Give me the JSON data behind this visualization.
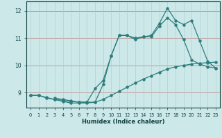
{
  "xlabel": "Humidex (Indice chaleur)",
  "bg_color": "#cce8e8",
  "line_color": "#2d7d7d",
  "xlim": [
    -0.5,
    23.5
  ],
  "ylim": [
    8.45,
    12.35
  ],
  "yticks": [
    9,
    10,
    11,
    12
  ],
  "xticks": [
    0,
    1,
    2,
    3,
    4,
    5,
    6,
    7,
    8,
    9,
    10,
    11,
    12,
    13,
    14,
    15,
    16,
    17,
    18,
    19,
    20,
    21,
    22,
    23
  ],
  "line1_x": [
    0,
    1,
    2,
    3,
    4,
    5,
    6,
    7,
    8,
    9,
    10,
    11,
    12,
    13,
    14,
    15,
    16,
    17,
    18,
    19,
    20,
    21,
    22,
    23
  ],
  "line1_y": [
    8.9,
    8.9,
    8.8,
    8.75,
    8.68,
    8.62,
    8.62,
    8.62,
    8.65,
    8.75,
    8.9,
    9.05,
    9.2,
    9.35,
    9.5,
    9.62,
    9.75,
    9.87,
    9.95,
    10.0,
    10.05,
    10.08,
    10.1,
    10.12
  ],
  "line2_x": [
    0,
    1,
    2,
    3,
    4,
    5,
    6,
    7,
    8,
    9,
    10,
    11,
    12,
    13,
    14,
    15,
    16,
    17,
    18,
    19,
    20,
    21,
    22,
    23
  ],
  "line2_y": [
    8.9,
    8.9,
    8.82,
    8.75,
    8.72,
    8.68,
    8.65,
    8.65,
    9.15,
    9.45,
    10.35,
    11.1,
    11.1,
    10.95,
    11.05,
    11.05,
    11.45,
    11.75,
    11.5,
    10.95,
    10.2,
    10.05,
    9.95,
    9.9
  ],
  "line3_x": [
    3,
    4,
    5,
    6,
    7,
    8,
    9,
    10,
    11,
    12,
    13,
    14,
    15,
    16,
    17,
    18,
    19,
    20,
    21,
    22,
    23
  ],
  "line3_y": [
    8.8,
    8.75,
    8.7,
    8.65,
    8.65,
    8.65,
    9.3,
    10.35,
    11.1,
    11.1,
    11.0,
    11.05,
    11.1,
    11.55,
    12.1,
    11.65,
    11.5,
    11.65,
    10.9,
    10.15,
    9.9
  ]
}
